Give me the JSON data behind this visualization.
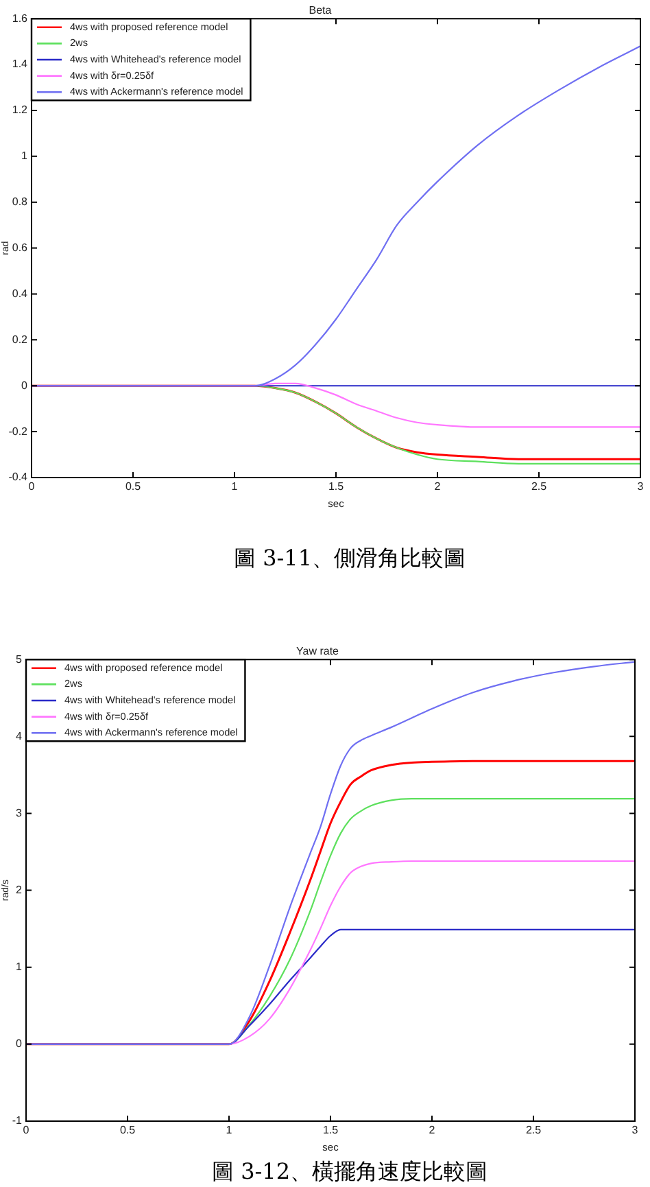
{
  "chart_data": [
    {
      "type": "line",
      "title": "Beta",
      "xlabel": "sec",
      "ylabel": "rad",
      "x": [
        0,
        1.0,
        1.1,
        1.2,
        1.3,
        1.4,
        1.5,
        1.6,
        1.7,
        1.8,
        1.9,
        2.0,
        2.2,
        2.4,
        2.6,
        2.8,
        3.0
      ],
      "xlim": [
        0,
        3
      ],
      "xticks": [
        0,
        0.5,
        1,
        1.5,
        2,
        2.5,
        3
      ],
      "ylim": [
        -0.4,
        1.6
      ],
      "yticks": [
        -0.4,
        -0.2,
        0,
        0.2,
        0.4,
        0.6,
        0.8,
        1,
        1.2,
        1.4,
        1.6
      ],
      "legend": "top left",
      "series": [
        {
          "name": "4ws with proposed reference model",
          "color": "#ff0000",
          "values": [
            0,
            0,
            0,
            -0.01,
            -0.03,
            -0.07,
            -0.12,
            -0.18,
            -0.23,
            -0.27,
            -0.29,
            -0.3,
            -0.31,
            -0.32,
            -0.32,
            -0.32,
            -0.32
          ]
        },
        {
          "name": "2ws",
          "color": "#5de05d",
          "values": [
            0,
            0,
            0,
            -0.01,
            -0.03,
            -0.07,
            -0.12,
            -0.18,
            -0.23,
            -0.27,
            -0.3,
            -0.32,
            -0.33,
            -0.34,
            -0.34,
            -0.34,
            -0.34
          ]
        },
        {
          "name": "4ws with Whitehead's reference model",
          "color": "#2a2ac8",
          "values": [
            0,
            0,
            0,
            0,
            0,
            0,
            0,
            0,
            0,
            0,
            0,
            0,
            0,
            0,
            0,
            0,
            0
          ]
        },
        {
          "name": "4ws with δr=0.25δf",
          "color": "#ff77ff",
          "values": [
            0,
            0,
            0,
            0.01,
            0.01,
            -0.01,
            -0.04,
            -0.08,
            -0.11,
            -0.14,
            -0.16,
            -0.17,
            -0.18,
            -0.18,
            -0.18,
            -0.18,
            -0.18
          ]
        },
        {
          "name": "4ws with Ackermann's reference model",
          "color": "#6f6ff2",
          "values": [
            0,
            0,
            0,
            0.03,
            0.09,
            0.18,
            0.29,
            0.42,
            0.55,
            0.7,
            0.8,
            0.89,
            1.05,
            1.18,
            1.29,
            1.39,
            1.48
          ]
        }
      ],
      "annotations": [
        "圖 3-11、側滑角比較圖"
      ]
    },
    {
      "type": "line",
      "title": "Yaw rate",
      "xlabel": "sec",
      "ylabel": "rad/s",
      "x": [
        0,
        1.0,
        1.1,
        1.2,
        1.3,
        1.4,
        1.45,
        1.5,
        1.55,
        1.6,
        1.65,
        1.7,
        1.8,
        1.9,
        2.0,
        2.2,
        2.4,
        2.6,
        2.8,
        3.0
      ],
      "xlim": [
        0,
        3
      ],
      "xticks": [
        0,
        0.5,
        1,
        1.5,
        2,
        2.5,
        3
      ],
      "ylim": [
        -1,
        5
      ],
      "yticks": [
        -1,
        0,
        1,
        2,
        3,
        4,
        5
      ],
      "legend": "top left",
      "series": [
        {
          "name": "4ws with proposed reference model",
          "color": "#ff0000",
          "values": [
            0,
            0,
            0.3,
            0.82,
            1.45,
            2.13,
            2.5,
            2.87,
            3.15,
            3.38,
            3.48,
            3.56,
            3.63,
            3.66,
            3.67,
            3.68,
            3.68,
            3.68,
            3.68,
            3.68
          ]
        },
        {
          "name": "2ws",
          "color": "#5de05d",
          "values": [
            0,
            0,
            0.25,
            0.62,
            1.1,
            1.73,
            2.1,
            2.45,
            2.74,
            2.93,
            3.03,
            3.1,
            3.17,
            3.19,
            3.19,
            3.19,
            3.19,
            3.19,
            3.19,
            3.19
          ]
        },
        {
          "name": "4ws with Whitehead's reference model",
          "color": "#2a2ac8",
          "values": [
            0,
            0,
            0.24,
            0.52,
            0.83,
            1.12,
            1.27,
            1.41,
            1.49,
            1.49,
            1.49,
            1.49,
            1.49,
            1.49,
            1.49,
            1.49,
            1.49,
            1.49,
            1.49,
            1.49
          ]
        },
        {
          "name": "4ws with δr=0.25δf",
          "color": "#ff77ff",
          "values": [
            0,
            0,
            0.1,
            0.33,
            0.72,
            1.22,
            1.5,
            1.8,
            2.05,
            2.23,
            2.31,
            2.35,
            2.37,
            2.38,
            2.38,
            2.38,
            2.38,
            2.38,
            2.38,
            2.38
          ]
        },
        {
          "name": "4ws with Ackermann's reference model",
          "color": "#6f6ff2",
          "values": [
            0,
            0,
            0.35,
            1.02,
            1.78,
            2.48,
            2.82,
            3.25,
            3.62,
            3.85,
            3.95,
            4.01,
            4.12,
            4.24,
            4.36,
            4.57,
            4.72,
            4.83,
            4.91,
            4.97
          ]
        }
      ],
      "annotations": [
        "圖 3-12、橫擺角速度比較圖"
      ]
    }
  ]
}
